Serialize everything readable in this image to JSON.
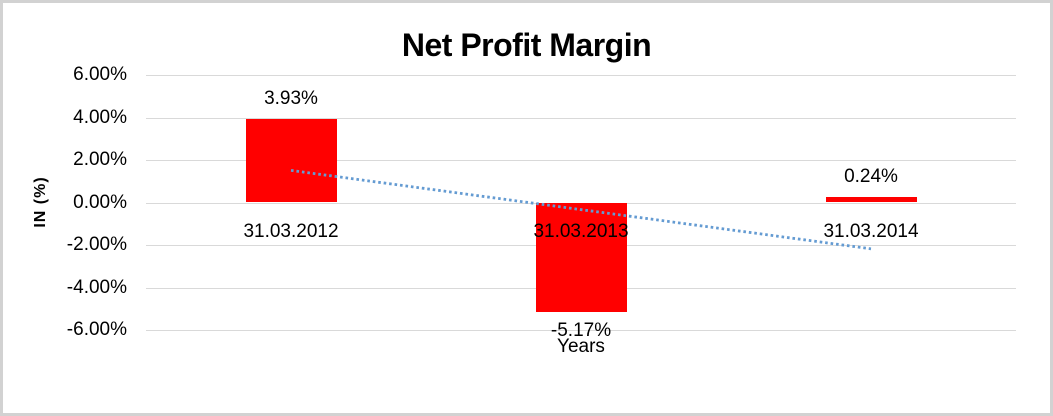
{
  "chart_data": {
    "type": "bar",
    "title": "Net Profit Margin",
    "xlabel": "Years",
    "ylabel": "IN (%)",
    "categories": [
      "31.03.2012",
      "31.03.2013",
      "31.03.2014"
    ],
    "values": [
      3.93,
      -5.17,
      0.24
    ],
    "data_labels": [
      "3.93%",
      "-5.17%",
      "0.24%"
    ],
    "yticks": [
      "6.00%",
      "4.00%",
      "2.00%",
      "0.00%",
      "-2.00%",
      "-4.00%",
      "-6.00%"
    ],
    "ylim": [
      -6,
      6
    ],
    "grid": true,
    "legend": "none",
    "bar_color": "#ff0000",
    "gridline_color": "#d9d9d9",
    "trendline": {
      "style": "dotted",
      "color": "#649bd2",
      "start_value": 1.51,
      "end_value": -2.18
    }
  }
}
